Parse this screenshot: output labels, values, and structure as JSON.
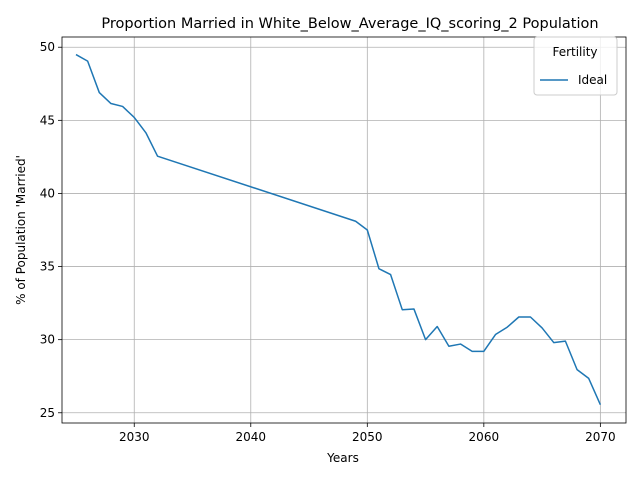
{
  "chart_data": {
    "type": "line",
    "title": "Proportion Married in White_Below_Average_IQ_scoring_2 Population",
    "xlabel": "Years",
    "ylabel": "% of Population 'Married'",
    "xlim": [
      2023.8,
      2072.2
    ],
    "ylim": [
      24.3,
      50.7
    ],
    "xticks": [
      2030,
      2040,
      2050,
      2060,
      2070
    ],
    "yticks": [
      25,
      30,
      35,
      40,
      45,
      50
    ],
    "grid": true,
    "legend": {
      "title": "Fertility",
      "placement": "top-right"
    },
    "colors": {
      "series": "#1f77b4",
      "grid": "#b0b0b0",
      "axes": "#000000"
    },
    "series": [
      {
        "name": "Ideal",
        "x": [
          2025,
          2026,
          2027,
          2028,
          2029,
          2030,
          2031,
          2032,
          2049,
          2050,
          2051,
          2052,
          2053,
          2054,
          2055,
          2056,
          2057,
          2058,
          2059,
          2060,
          2061,
          2062,
          2063,
          2064,
          2065,
          2066,
          2067,
          2068,
          2069,
          2070
        ],
        "y": [
          49.5,
          49.05,
          46.9,
          46.15,
          45.95,
          45.2,
          44.15,
          42.55,
          38.1,
          37.5,
          34.85,
          34.45,
          32.05,
          32.1,
          30.0,
          30.9,
          29.55,
          29.7,
          29.2,
          29.2,
          30.35,
          30.85,
          31.55,
          31.55,
          30.8,
          29.8,
          29.9,
          27.95,
          27.35,
          25.55
        ]
      }
    ]
  }
}
